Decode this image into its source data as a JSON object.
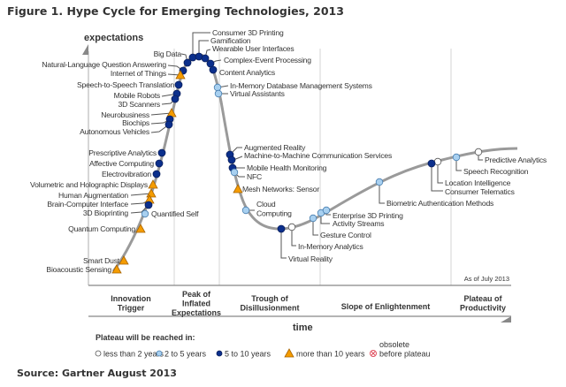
{
  "title": "Figure 1. Hype Cycle for Emerging Technologies, 2013",
  "source": "Source: Gartner August 2013",
  "axes": {
    "y_label": "expectations",
    "x_label": "time"
  },
  "as_of": "As of July 2013",
  "phases": [
    {
      "lines": [
        "Innovation",
        "Trigger"
      ]
    },
    {
      "lines": [
        "Peak of",
        "Inflated",
        "Expectations"
      ]
    },
    {
      "lines": [
        "Trough of",
        "Disillusionment"
      ]
    },
    {
      "lines": [
        "Slope of Enlightenment"
      ]
    },
    {
      "lines": [
        "Plateau of",
        "Productivity"
      ]
    }
  ],
  "legend": {
    "title": "Plateau will be reached in:",
    "items": [
      {
        "key": "lt2",
        "label": "less than 2 years",
        "color": "#ffffff"
      },
      {
        "key": "2to5",
        "label": "2 to 5 years",
        "color": "#a8d0f0"
      },
      {
        "key": "5to10",
        "label": "5 to 10 years",
        "color": "#0b2f8c"
      },
      {
        "key": "gt10",
        "label": "more than 10 years",
        "color": "#f59c00"
      },
      {
        "key": "obsolete",
        "label_lines": [
          "obsolete",
          "before plateau"
        ],
        "color": "#e05060"
      }
    ]
  },
  "technologies": [
    {
      "label": "Consumer 3D Printing",
      "plateau": "5to10"
    },
    {
      "label": "Gamification",
      "plateau": "5to10"
    },
    {
      "label": "Wearable User Interfaces",
      "plateau": "5to10"
    },
    {
      "label": "Complex-Event Processing",
      "plateau": "5to10"
    },
    {
      "label": "Content Analytics",
      "plateau": "5to10"
    },
    {
      "label": "In-Memory Database Management Systems",
      "plateau": "2to5"
    },
    {
      "label": "Virtual Assistants",
      "plateau": "2to5"
    },
    {
      "label": "Big Data",
      "plateau": "5to10"
    },
    {
      "label": "Natural-Language Question Answering",
      "plateau": "5to10"
    },
    {
      "label": "Internet of Things",
      "plateau": "gt10"
    },
    {
      "label": "Speech-to-Speech Translation",
      "plateau": "5to10"
    },
    {
      "label": "Mobile Robots",
      "plateau": "5to10"
    },
    {
      "label": "3D Scanners",
      "plateau": "5to10"
    },
    {
      "label": "Neurobusiness",
      "plateau": "gt10"
    },
    {
      "label": "Biochips",
      "plateau": "5to10"
    },
    {
      "label": "Autonomous Vehicles",
      "plateau": "5to10"
    },
    {
      "label": "Prescriptive Analytics",
      "plateau": "5to10"
    },
    {
      "label": "Affective Computing",
      "plateau": "5to10"
    },
    {
      "label": "Electrovibration",
      "plateau": "5to10"
    },
    {
      "label": "Volumetric and Holographic Displays",
      "plateau": "gt10"
    },
    {
      "label": "Human Augmentation",
      "plateau": "gt10"
    },
    {
      "label": "Brain-Computer Interface",
      "plateau": "gt10"
    },
    {
      "label": "3D Bioprinting",
      "plateau": "5to10"
    },
    {
      "label": "Quantified Self",
      "plateau": "2to5"
    },
    {
      "label": "Quantum Computing",
      "plateau": "gt10"
    },
    {
      "label": "Smart Dust",
      "plateau": "gt10"
    },
    {
      "label": "Bioacoustic Sensing",
      "plateau": "gt10"
    },
    {
      "label": "Augmented Reality",
      "plateau": "5to10"
    },
    {
      "label": "Machine-to-Machine Communication Services",
      "plateau": "5to10"
    },
    {
      "label": "Mobile Health Monitoring",
      "plateau": "5to10"
    },
    {
      "label": "NFC",
      "plateau": "2to5"
    },
    {
      "label": "Mesh Networks: Sensor",
      "plateau": "gt10"
    },
    {
      "label_lines": [
        "Cloud",
        "Computing"
      ],
      "plateau": "2to5"
    },
    {
      "label": "Virtual Reality",
      "plateau": "5to10"
    },
    {
      "label": "In-Memory Analytics",
      "plateau": "lt2"
    },
    {
      "label": "Gesture Control",
      "plateau": "2to5"
    },
    {
      "label": "Activity Streams",
      "plateau": "2to5"
    },
    {
      "label": "Enterprise 3D Printing",
      "plateau": "2to5"
    },
    {
      "label": "Biometric Authentication Methods",
      "plateau": "2to5"
    },
    {
      "label": "Location Intelligence",
      "plateau": "lt2"
    },
    {
      "label": "Consumer Telematics",
      "plateau": "5to10"
    },
    {
      "label": "Speech Recognition",
      "plateau": "2to5"
    },
    {
      "label": "Predictive Analytics",
      "plateau": "lt2"
    }
  ]
}
